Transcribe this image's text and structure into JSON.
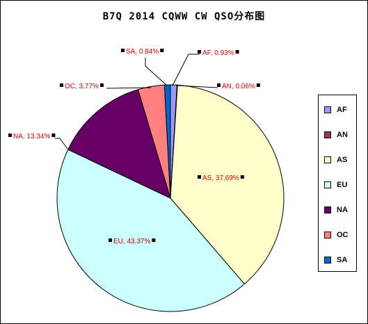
{
  "chart_data": {
    "type": "pie",
    "title": "B7Q 2014 CQWW CW QSO分布图",
    "categories": [
      "AF",
      "AN",
      "AS",
      "EU",
      "NA",
      "OC",
      "SA"
    ],
    "values": [
      0.93,
      0.06,
      37.69,
      43.37,
      13.34,
      3.77,
      0.84
    ],
    "colors": [
      "#9999FF",
      "#993366",
      "#FFFFCC",
      "#CCFFFF",
      "#660066",
      "#FF8080",
      "#0066CC"
    ],
    "data_labels": [
      "AF, 0.93%",
      "AN, 0.06%",
      "AS, 37.69%",
      "EU, 43.37%",
      "NA, 13.34%",
      "OC, 3.77%",
      "SA, 0.84%"
    ],
    "legend_placement": "right",
    "label_color": "#CC0000"
  }
}
